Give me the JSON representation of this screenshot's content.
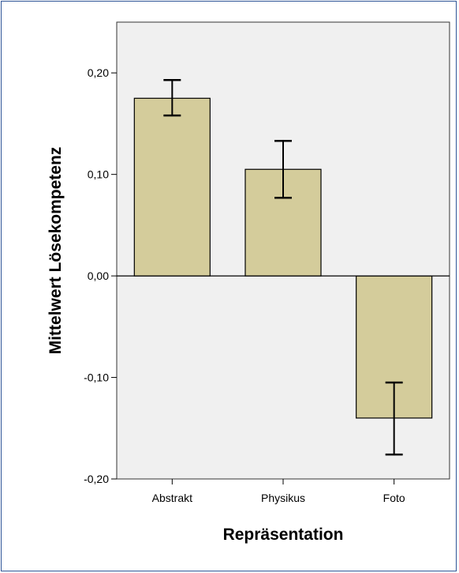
{
  "chart_data": {
    "type": "bar",
    "title": "",
    "xlabel": "Repräsentation",
    "ylabel": "Mittelwert Lösekompetenz",
    "categories": [
      "Abstrakt",
      "Physikus",
      "Foto"
    ],
    "values": [
      0.175,
      0.105,
      -0.14
    ],
    "error_bars": {
      "lower": [
        0.158,
        0.077,
        -0.176
      ],
      "upper": [
        0.193,
        0.133,
        -0.105
      ]
    },
    "ylim": [
      -0.2,
      0.25
    ],
    "yticks": [
      -0.2,
      -0.1,
      0.0,
      0.1,
      0.2
    ],
    "ytick_labels": [
      "-0,20",
      "-0,10",
      "0,00",
      "0,10",
      "0,20"
    ],
    "grid": false,
    "colors": {
      "bar_fill": "#d4cc9b",
      "bar_stroke": "#000000",
      "plot_background": "#f0f0f0",
      "frame_border": "#2f5597",
      "zero_line": "#000000"
    }
  }
}
